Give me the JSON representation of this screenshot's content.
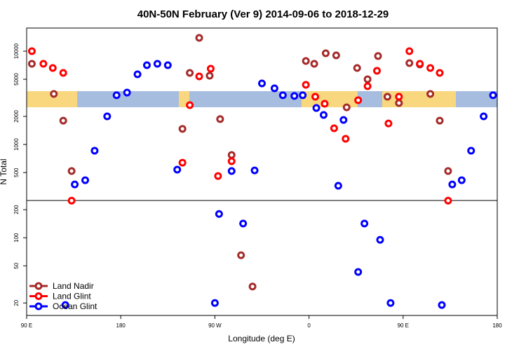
{
  "chart_data": {
    "type": "scatter",
    "title": "40N-50N February (Ver 9)   2014-09-06 to 2018-12-29",
    "x_label": "Longitude (deg E)",
    "y_label": "N Total",
    "xlim": [
      90,
      540
    ],
    "xticks": [
      {
        "value": 90,
        "label": "90 E"
      },
      {
        "value": 180,
        "label": "180"
      },
      {
        "value": 270,
        "label": "90 W"
      },
      {
        "value": 360,
        "label": "0"
      },
      {
        "value": 450,
        "label": "90 E"
      },
      {
        "value": 540,
        "label": "180"
      }
    ],
    "ylim": [
      14.7,
      17700
    ],
    "y_log": true,
    "yticks": [
      20,
      50,
      100,
      200,
      500,
      1000,
      2000,
      5000,
      10000
    ],
    "legend": "lower left",
    "series": [
      {
        "name": "Land Nadir",
        "color": "#a52a2a",
        "x": [
          95,
          116,
          125,
          133,
          239,
          246,
          255,
          265,
          275,
          286,
          306,
          295,
          357,
          365,
          376,
          386,
          396,
          406,
          416,
          426,
          435,
          446,
          456,
          466,
          476,
          485,
          493
        ],
        "values": [
          7330,
          3480,
          1800,
          519,
          1470,
          5850,
          13900,
          5460,
          1870,
          771,
          30,
          65,
          7850,
          7330,
          9500,
          9020,
          2500,
          6600,
          5000,
          8870,
          3250,
          2780,
          7450,
          7200,
          3480,
          1800,
          519
        ]
      },
      {
        "name": "Land Glint",
        "color": "#ff0000",
        "x": [
          95,
          106,
          115,
          125,
          133,
          246,
          239,
          255,
          266,
          273,
          286,
          357,
          366,
          375,
          384,
          395,
          407,
          416,
          425,
          436,
          446,
          456,
          466,
          476,
          485,
          493
        ],
        "values": [
          10000,
          7330,
          6600,
          5850,
          250,
          2640,
          638,
          5370,
          6490,
          459,
          661,
          4360,
          3250,
          2730,
          1490,
          1150,
          2980,
          4210,
          6160,
          1680,
          3250,
          10000,
          7330,
          6600,
          5850,
          250
        ]
      },
      {
        "name": "Ocean Glint",
        "color": "#0000ff",
        "x": [
          127,
          136,
          146,
          155,
          167,
          176,
          186,
          196,
          205,
          215,
          225,
          234,
          274,
          270,
          286,
          297,
          308,
          315,
          327,
          335,
          346,
          354,
          367,
          374,
          388,
          393,
          407,
          413,
          428,
          438,
          487,
          497,
          506,
          515,
          527,
          536
        ],
        "values": [
          19,
          373,
          414,
          857,
          2000,
          3370,
          3600,
          5650,
          7080,
          7330,
          7080,
          537,
          180,
          20,
          519,
          142,
          527,
          4510,
          4000,
          3370,
          3310,
          3370,
          2460,
          2070,
          361,
          1830,
          43,
          142,
          95,
          20,
          19,
          373,
          414,
          857,
          2000,
          3370
        ]
      }
    ]
  }
}
